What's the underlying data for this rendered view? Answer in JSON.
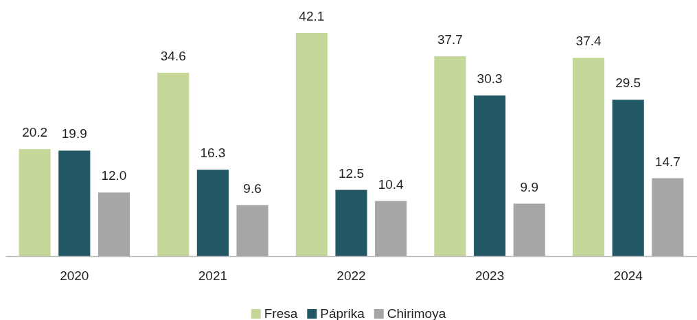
{
  "chart_data": {
    "type": "bar",
    "categories": [
      "2020",
      "2021",
      "2022",
      "2023",
      "2024"
    ],
    "series": [
      {
        "name": "Fresa",
        "color": "#c5d89a",
        "values": [
          20.2,
          34.6,
          42.1,
          37.7,
          37.4
        ],
        "value_labels": [
          "20.2",
          "34.6",
          "42.1",
          "37.7",
          "37.4"
        ]
      },
      {
        "name": "Páprika",
        "color": "#215864",
        "values": [
          19.9,
          16.3,
          12.5,
          30.3,
          29.5
        ],
        "value_labels": [
          "19.9",
          "16.3",
          "12.5",
          "30.3",
          "29.5"
        ]
      },
      {
        "name": "Chirimoya",
        "color": "#a6a6a6",
        "values": [
          12.0,
          9.6,
          10.4,
          9.9,
          14.7
        ],
        "value_labels": [
          "12.0",
          "9.6",
          "10.4",
          "9.9",
          "14.7"
        ]
      }
    ],
    "legend": "bottom"
  }
}
